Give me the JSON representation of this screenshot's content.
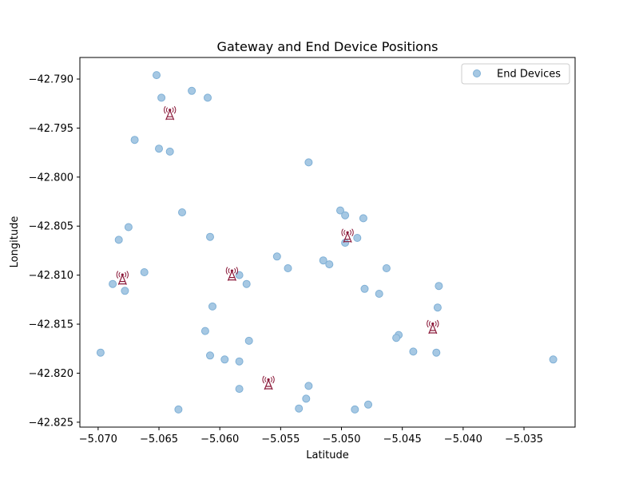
{
  "chart_data": {
    "type": "scatter",
    "title": "Gateway and End Device Positions",
    "xlabel": "Latitude",
    "ylabel": "Longitude",
    "xlim": [
      -5.0715,
      -5.0308
    ],
    "ylim": [
      -42.8255,
      -42.7878
    ],
    "xticks": [
      -5.07,
      -5.065,
      -5.06,
      -5.055,
      -5.05,
      -5.045,
      -5.04,
      -5.035
    ],
    "xtick_labels": [
      "−5.070",
      "−5.065",
      "−5.060",
      "−5.055",
      "−5.050",
      "−5.045",
      "−5.040",
      "−5.035"
    ],
    "yticks": [
      -42.79,
      -42.795,
      -42.8,
      -42.805,
      -42.81,
      -42.815,
      -42.82,
      -42.825
    ],
    "ytick_labels": [
      "−42.790",
      "−42.795",
      "−42.800",
      "−42.805",
      "−42.810",
      "−42.815",
      "−42.820",
      "−42.825"
    ],
    "legend": {
      "location": "top-right",
      "entries": [
        "End Devices"
      ]
    },
    "colors": {
      "end_device": "#a6c8e3",
      "end_device_edge": "#7fb0d6",
      "gateway": "#8b1a3a"
    },
    "series": [
      {
        "name": "End Devices",
        "marker": "circle",
        "points": [
          [
            -5.0652,
            -42.7896
          ],
          [
            -5.0648,
            -42.7919
          ],
          [
            -5.0623,
            -42.7912
          ],
          [
            -5.061,
            -42.7919
          ],
          [
            -5.067,
            -42.7962
          ],
          [
            -5.065,
            -42.7971
          ],
          [
            -5.0641,
            -42.7974
          ],
          [
            -5.0527,
            -42.7985
          ],
          [
            -5.0631,
            -42.8036
          ],
          [
            -5.0675,
            -42.8051
          ],
          [
            -5.0683,
            -42.8064
          ],
          [
            -5.0608,
            -42.8061
          ],
          [
            -5.0501,
            -42.8034
          ],
          [
            -5.0497,
            -42.8039
          ],
          [
            -5.0482,
            -42.8042
          ],
          [
            -5.0487,
            -42.8062
          ],
          [
            -5.0497,
            -42.8067
          ],
          [
            -5.0553,
            -42.8081
          ],
          [
            -5.0544,
            -42.8093
          ],
          [
            -5.0515,
            -42.8085
          ],
          [
            -5.051,
            -42.8089
          ],
          [
            -5.0463,
            -42.8093
          ],
          [
            -5.0688,
            -42.8109
          ],
          [
            -5.0678,
            -42.8116
          ],
          [
            -5.0662,
            -42.8097
          ],
          [
            -5.0584,
            -42.81
          ],
          [
            -5.0578,
            -42.8109
          ],
          [
            -5.0481,
            -42.8114
          ],
          [
            -5.0469,
            -42.8119
          ],
          [
            -5.042,
            -42.8111
          ],
          [
            -5.0606,
            -42.8132
          ],
          [
            -5.0421,
            -42.8133
          ],
          [
            -5.0612,
            -42.8157
          ],
          [
            -5.0576,
            -42.8167
          ],
          [
            -5.0453,
            -42.8161
          ],
          [
            -5.0455,
            -42.8164
          ],
          [
            -5.0441,
            -42.8178
          ],
          [
            -5.0422,
            -42.8179
          ],
          [
            -5.0698,
            -42.8179
          ],
          [
            -5.0608,
            -42.8182
          ],
          [
            -5.0596,
            -42.8186
          ],
          [
            -5.0584,
            -42.8188
          ],
          [
            -5.0326,
            -42.8186
          ],
          [
            -5.0527,
            -42.8213
          ],
          [
            -5.0584,
            -42.8216
          ],
          [
            -5.0529,
            -42.8226
          ],
          [
            -5.0535,
            -42.8236
          ],
          [
            -5.0634,
            -42.8237
          ],
          [
            -5.0489,
            -42.8237
          ],
          [
            -5.0478,
            -42.8232
          ]
        ]
      },
      {
        "name": "Gateways",
        "marker": "tower",
        "points": [
          [
            -5.0641,
            -42.7936
          ],
          [
            -5.0495,
            -42.8061
          ],
          [
            -5.068,
            -42.8104
          ],
          [
            -5.059,
            -42.81
          ],
          [
            -5.0425,
            -42.8154
          ],
          [
            -5.056,
            -42.8211
          ]
        ]
      }
    ]
  }
}
